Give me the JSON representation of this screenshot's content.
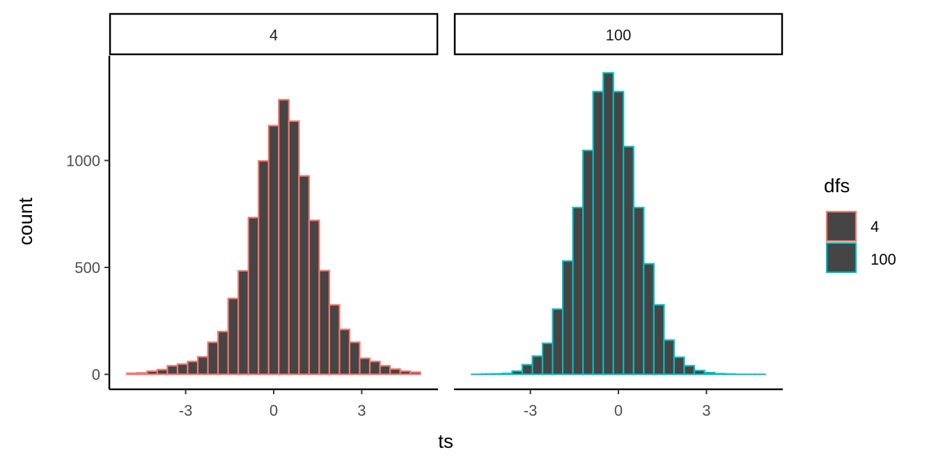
{
  "chart_data": {
    "type": "bar",
    "subtype": "faceted-histogram",
    "xlabel": "ts",
    "ylabel": "count",
    "x_range": [
      -5.0,
      5.0
    ],
    "ylim": [
      -70,
      1490
    ],
    "x_ticks": [
      -3,
      0,
      3
    ],
    "x_tick_labels": [
      "-3",
      "0",
      "3"
    ],
    "y_ticks": [
      0,
      500,
      1000
    ],
    "y_tick_labels": [
      "0",
      "500",
      "1000"
    ],
    "grid": false,
    "bin_width": 0.34483,
    "bin_centers": [
      -4.8276,
      -4.4828,
      -4.1379,
      -3.7931,
      -3.4483,
      -3.1034,
      -2.7586,
      -2.4138,
      -2.069,
      -1.7241,
      -1.3793,
      -1.0345,
      -0.6897,
      -0.3448,
      0.0,
      0.3448,
      0.6897,
      1.0345,
      1.3793,
      1.7241,
      2.069,
      2.4138,
      2.7586,
      3.1034,
      3.4483,
      3.7931,
      4.1379,
      4.4828,
      4.8276
    ],
    "legend": {
      "title": "dfs",
      "position": "right",
      "entries": [
        {
          "label": "4",
          "color": "#F8766D"
        },
        {
          "label": "100",
          "color": "#00BFC4"
        }
      ]
    },
    "fill_color": "#454545",
    "panels": [
      {
        "strip_label": "4",
        "color": "#F8766D",
        "values": [
          5,
          7,
          15,
          22,
          40,
          48,
          60,
          82,
          150,
          200,
          355,
          484,
          733,
          998,
          1163,
          1284,
          1184,
          928,
          720,
          485,
          325,
          210,
          150,
          75,
          60,
          40,
          25,
          15,
          10
        ]
      },
      {
        "strip_label": "100",
        "color": "#00BFC4",
        "values": [
          0,
          1,
          2,
          4,
          15,
          45,
          85,
          145,
          305,
          530,
          780,
          1047,
          1322,
          1410,
          1322,
          1065,
          780,
          517,
          325,
          160,
          80,
          40,
          18,
          8,
          3,
          1,
          0,
          0,
          0
        ]
      }
    ]
  }
}
